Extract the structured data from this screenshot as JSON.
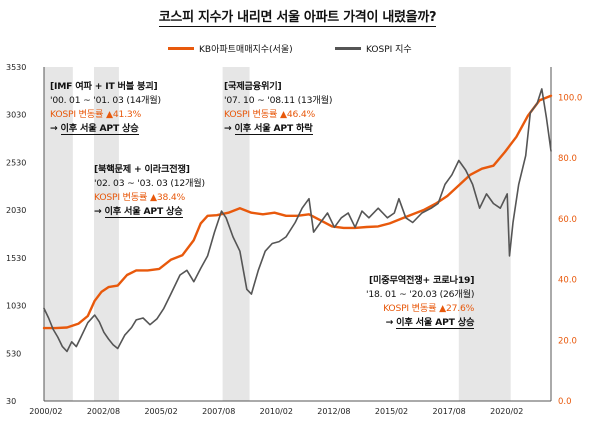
{
  "chart_data": {
    "type": "line",
    "title": "코스피 지수가 내리면 서울 아파트 가격이 내렸을까?",
    "legend": {
      "placement": "top",
      "entries": [
        "KB아파트매매지수(서울)",
        "KOSPI 지수"
      ]
    },
    "x_range": [
      2000.0,
      2022.0
    ],
    "x_ticks": [
      {
        "label": "2000/02",
        "t": 2000.08
      },
      {
        "label": "2002/08",
        "t": 2002.58
      },
      {
        "label": "2005/02",
        "t": 2005.08
      },
      {
        "label": "2007/08",
        "t": 2007.58
      },
      {
        "label": "2010/02",
        "t": 2010.08
      },
      {
        "label": "2012/08",
        "t": 2012.58
      },
      {
        "label": "2015/02",
        "t": 2015.08
      },
      {
        "label": "2017/08",
        "t": 2017.58
      },
      {
        "label": "2020/02",
        "t": 2020.08
      }
    ],
    "y_left": {
      "ticks": [
        "3530",
        "3030",
        "2530",
        "2030",
        "1530",
        "1030",
        "530",
        "30"
      ],
      "range": [
        30,
        3530
      ]
    },
    "y_right": {
      "ticks": [
        "100.0",
        "80.0",
        "60.0",
        "40.0",
        "20.0",
        "0.0"
      ],
      "range": [
        0,
        110
      ]
    },
    "shaded_periods": [
      {
        "start": 2000.0,
        "end": 2001.25
      },
      {
        "start": 2002.17,
        "end": 2003.25
      },
      {
        "start": 2007.75,
        "end": 2008.92
      },
      {
        "start": 2018.0,
        "end": 2020.25
      }
    ],
    "series": [
      {
        "name": "KB아파트매매지수(서울)",
        "axis": "right",
        "color": "#e8590c",
        "points": [
          [
            2000.0,
            24.0
          ],
          [
            2000.5,
            24.0
          ],
          [
            2001.0,
            24.2
          ],
          [
            2001.5,
            25.5
          ],
          [
            2001.9,
            28.0
          ],
          [
            2002.2,
            33.0
          ],
          [
            2002.5,
            36.0
          ],
          [
            2002.8,
            37.5
          ],
          [
            2003.2,
            38.0
          ],
          [
            2003.6,
            41.5
          ],
          [
            2004.0,
            43.0
          ],
          [
            2004.5,
            43.0
          ],
          [
            2005.0,
            43.5
          ],
          [
            2005.5,
            46.5
          ],
          [
            2006.0,
            48.0
          ],
          [
            2006.5,
            53.0
          ],
          [
            2006.8,
            58.5
          ],
          [
            2007.1,
            61.0
          ],
          [
            2007.5,
            61.2
          ],
          [
            2008.0,
            62.0
          ],
          [
            2008.5,
            63.5
          ],
          [
            2009.0,
            62.0
          ],
          [
            2009.5,
            61.5
          ],
          [
            2010.0,
            62.0
          ],
          [
            2010.5,
            61.0
          ],
          [
            2011.0,
            61.0
          ],
          [
            2011.5,
            61.5
          ],
          [
            2012.0,
            59.5
          ],
          [
            2012.5,
            57.5
          ],
          [
            2013.0,
            57.0
          ],
          [
            2013.5,
            57.0
          ],
          [
            2014.0,
            57.3
          ],
          [
            2014.5,
            57.5
          ],
          [
            2015.0,
            58.5
          ],
          [
            2015.5,
            60.0
          ],
          [
            2016.0,
            61.5
          ],
          [
            2016.5,
            63.0
          ],
          [
            2017.0,
            65.0
          ],
          [
            2017.5,
            67.5
          ],
          [
            2018.0,
            71.0
          ],
          [
            2018.5,
            74.5
          ],
          [
            2019.0,
            76.5
          ],
          [
            2019.5,
            77.5
          ],
          [
            2020.0,
            82.0
          ],
          [
            2020.5,
            87.0
          ],
          [
            2021.0,
            94.0
          ],
          [
            2021.5,
            99.0
          ],
          [
            2022.0,
            100.5
          ]
        ]
      },
      {
        "name": "KOSPI 지수",
        "axis": "left",
        "color": "#555555",
        "points": [
          [
            2000.0,
            1000
          ],
          [
            2000.2,
            900
          ],
          [
            2000.4,
            780
          ],
          [
            2000.6,
            700
          ],
          [
            2000.8,
            600
          ],
          [
            2001.0,
            550
          ],
          [
            2001.2,
            650
          ],
          [
            2001.4,
            600
          ],
          [
            2001.6,
            700
          ],
          [
            2001.9,
            850
          ],
          [
            2002.2,
            930
          ],
          [
            2002.4,
            860
          ],
          [
            2002.6,
            750
          ],
          [
            2002.8,
            680
          ],
          [
            2003.0,
            620
          ],
          [
            2003.2,
            580
          ],
          [
            2003.5,
            720
          ],
          [
            2003.8,
            800
          ],
          [
            2004.0,
            880
          ],
          [
            2004.3,
            900
          ],
          [
            2004.6,
            830
          ],
          [
            2004.9,
            890
          ],
          [
            2005.2,
            1000
          ],
          [
            2005.5,
            1150
          ],
          [
            2005.9,
            1350
          ],
          [
            2006.2,
            1400
          ],
          [
            2006.5,
            1280
          ],
          [
            2006.8,
            1420
          ],
          [
            2007.1,
            1550
          ],
          [
            2007.4,
            1800
          ],
          [
            2007.7,
            2020
          ],
          [
            2007.9,
            1950
          ],
          [
            2008.2,
            1750
          ],
          [
            2008.5,
            1600
          ],
          [
            2008.8,
            1200
          ],
          [
            2009.0,
            1150
          ],
          [
            2009.3,
            1400
          ],
          [
            2009.6,
            1600
          ],
          [
            2009.9,
            1680
          ],
          [
            2010.2,
            1700
          ],
          [
            2010.5,
            1750
          ],
          [
            2010.9,
            1900
          ],
          [
            2011.2,
            2050
          ],
          [
            2011.5,
            2150
          ],
          [
            2011.7,
            1800
          ],
          [
            2012.0,
            1900
          ],
          [
            2012.3,
            2000
          ],
          [
            2012.6,
            1850
          ],
          [
            2012.9,
            1950
          ],
          [
            2013.2,
            2000
          ],
          [
            2013.5,
            1850
          ],
          [
            2013.8,
            2020
          ],
          [
            2014.1,
            1950
          ],
          [
            2014.5,
            2050
          ],
          [
            2014.9,
            1950
          ],
          [
            2015.2,
            2000
          ],
          [
            2015.4,
            2150
          ],
          [
            2015.7,
            1950
          ],
          [
            2016.0,
            1900
          ],
          [
            2016.4,
            2000
          ],
          [
            2016.8,
            2050
          ],
          [
            2017.1,
            2100
          ],
          [
            2017.4,
            2300
          ],
          [
            2017.7,
            2400
          ],
          [
            2018.0,
            2550
          ],
          [
            2018.3,
            2450
          ],
          [
            2018.6,
            2300
          ],
          [
            2018.9,
            2050
          ],
          [
            2019.2,
            2200
          ],
          [
            2019.5,
            2100
          ],
          [
            2019.8,
            2050
          ],
          [
            2020.1,
            2200
          ],
          [
            2020.2,
            1550
          ],
          [
            2020.35,
            1900
          ],
          [
            2020.6,
            2300
          ],
          [
            2020.9,
            2600
          ],
          [
            2021.1,
            3050
          ],
          [
            2021.4,
            3150
          ],
          [
            2021.6,
            3300
          ],
          [
            2021.8,
            3000
          ],
          [
            2022.0,
            2650
          ]
        ]
      }
    ],
    "annotations": [
      {
        "period_header": "[IMF 여파 + IT 버블 붕괴]",
        "period": "'00. 01 ~ '01. 03 (14개월)",
        "change": "KOSPI 변동률 ▲41.3%",
        "result": "이후 서울 APT 상승"
      },
      {
        "period_header": "[국제금융위기]",
        "period": "'07. 10 ~ '08.11 (13개월)",
        "change": "KOSPI 변동률 ▲46.4%",
        "result": "이후 서울 APT 하락"
      },
      {
        "period_header": "[북핵문제 + 이라크전쟁]",
        "period": "'02. 03 ~ '03. 03 (12개월)",
        "change": "KOSPI 변동률 ▲38.4%",
        "result": "이후 서울 APT 상승"
      },
      {
        "period_header": "[미중무역전쟁+ 코로나19]",
        "period": "'18. 01 ~ '20.03 (26개월)",
        "change": "KOSPI 변동률 ▲27.6%",
        "result": "이후 서울 APT 상승"
      }
    ],
    "arrow_glyph": "→",
    "grid": false
  }
}
